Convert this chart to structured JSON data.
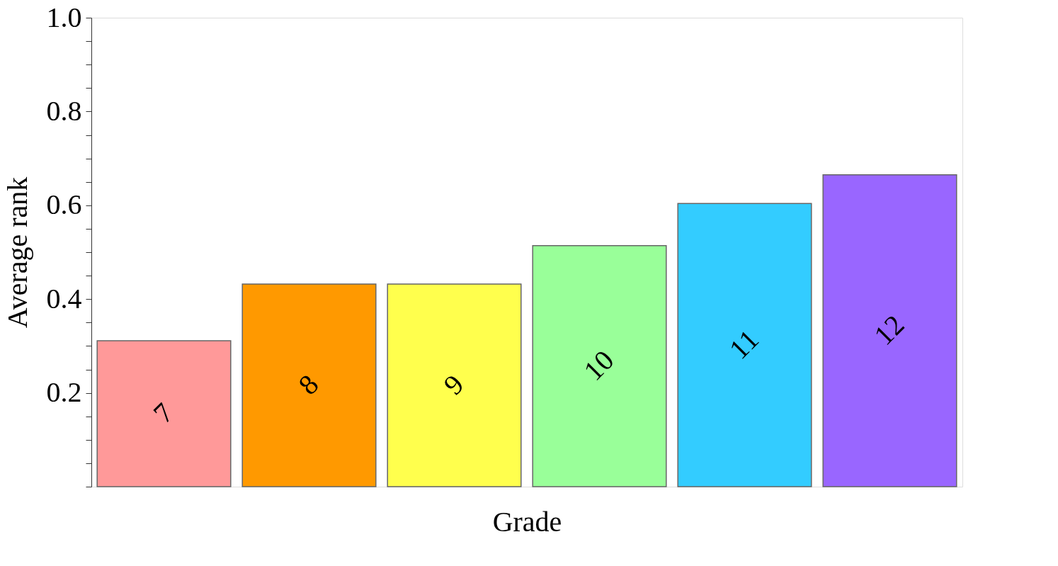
{
  "chart_data": {
    "type": "bar",
    "xlabel": "Grade",
    "ylabel": "Average rank",
    "categories": [
      "7",
      "8",
      "9",
      "10",
      "11",
      "12"
    ],
    "values": [
      0.311,
      0.432,
      0.432,
      0.514,
      0.604,
      0.665
    ],
    "colors": [
      "#ff9999",
      "#ff9900",
      "#ffff4d",
      "#99ff99",
      "#33ccff",
      "#9966ff"
    ],
    "ylim": [
      0,
      1.0
    ],
    "yticks": [
      {
        "value": 0,
        "label": null
      },
      {
        "value": 0.05,
        "label": null
      },
      {
        "value": 0.1,
        "label": null
      },
      {
        "value": 0.15,
        "label": null
      },
      "0.2",
      {
        "value": 0.25,
        "label": null
      },
      {
        "value": 0.3,
        "label": null
      },
      {
        "value": 0.35,
        "label": null
      },
      {
        "value": 0.4,
        "label": "0.4"
      },
      {
        "value": 0.45,
        "label": null
      },
      {
        "value": 0.5,
        "label": null
      },
      {
        "value": 0.55,
        "label": null
      },
      {
        "value": 0.6,
        "label": "0.6"
      },
      {
        "value": 0.65,
        "label": null
      },
      {
        "value": 0.7,
        "label": null
      },
      {
        "value": 0.75,
        "label": null
      },
      {
        "value": 0.8,
        "label": "0.8"
      },
      {
        "value": 0.85,
        "label": null
      },
      {
        "value": 0.9,
        "label": null
      },
      {
        "value": 0.95,
        "label": null
      },
      {
        "value": 1.0,
        "label": "1.0"
      }
    ],
    "grid": false
  }
}
